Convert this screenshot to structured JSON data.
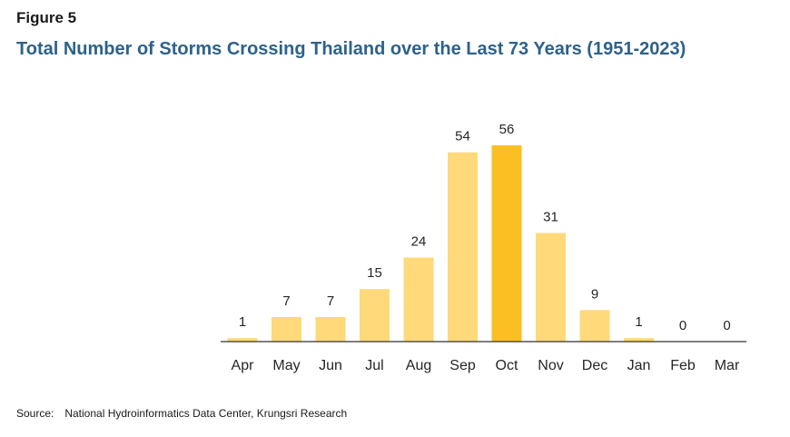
{
  "figure_label": "Figure  5",
  "title": "Total Number of Storms Crossing Thailand over the Last 73 Years (1951-2023)",
  "source": {
    "label": "Source:",
    "text": "National Hydroinformatics Data Center,",
    "org": "Krungsri Research"
  },
  "colors": {
    "bar": "#ffd97a",
    "highlight": "#fbbf24",
    "axis": "#333333",
    "title": "#2e6289"
  },
  "chart_data": {
    "type": "bar",
    "categories": [
      "Apr",
      "May",
      "Jun",
      "Jul",
      "Aug",
      "Sep",
      "Oct",
      "Nov",
      "Dec",
      "Jan",
      "Feb",
      "Mar"
    ],
    "values": [
      1,
      7,
      7,
      15,
      24,
      54,
      56,
      31,
      9,
      1,
      0,
      0
    ],
    "highlight_category": "Oct",
    "data_labels": true,
    "grid": false,
    "legend": "none"
  }
}
